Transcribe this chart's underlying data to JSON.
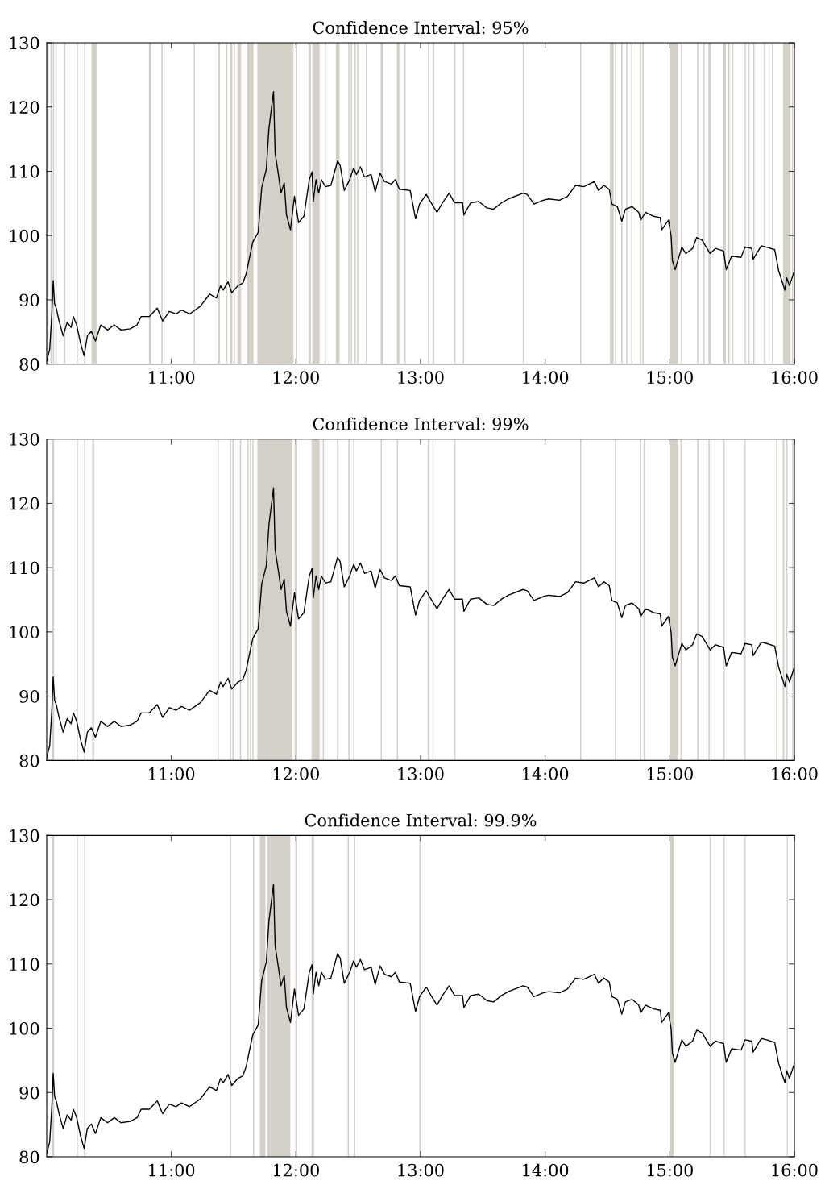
{
  "chart_data": [
    {
      "type": "line",
      "title": "Confidence Interval: 95%",
      "xlim": [
        10,
        16
      ],
      "ylim": [
        80,
        130
      ],
      "xticks": [
        {
          "value": 11,
          "label": "11:00"
        },
        {
          "value": 12,
          "label": "12:00"
        },
        {
          "value": 13,
          "label": "13:00"
        },
        {
          "value": 14,
          "label": "14:00"
        },
        {
          "value": 15,
          "label": "15:00"
        },
        {
          "value": 16,
          "label": "16:00"
        }
      ],
      "yticks": [
        80,
        90,
        100,
        110,
        120,
        130
      ],
      "series": [
        {
          "color": "#000000",
          "x": [
            10.0,
            10.024,
            10.041,
            10.052,
            10.063,
            10.078,
            10.099,
            10.132,
            10.164,
            10.196,
            10.214,
            10.24,
            10.272,
            10.3,
            10.326,
            10.358,
            10.391,
            10.434,
            10.488,
            10.542,
            10.596,
            10.671,
            10.725,
            10.758,
            10.823,
            10.887,
            10.93,
            10.984,
            11.038,
            11.082,
            11.146,
            11.233,
            11.308,
            11.362,
            11.395,
            11.416,
            11.455,
            11.485,
            11.535,
            11.574,
            11.6,
            11.632,
            11.654,
            11.697,
            11.725,
            11.762,
            11.783,
            11.82,
            11.833,
            11.859,
            11.88,
            11.906,
            11.924,
            11.956,
            11.988,
            12.021,
            12.064,
            12.107,
            12.129,
            12.139,
            12.161,
            12.183,
            12.204,
            12.237,
            12.28,
            12.334,
            12.355,
            12.388,
            12.431,
            12.463,
            12.485,
            12.517,
            12.55,
            12.604,
            12.636,
            12.675,
            12.711,
            12.765,
            12.798,
            12.83,
            12.917,
            12.96,
            12.992,
            13.046,
            13.078,
            13.132,
            13.176,
            13.229,
            13.273,
            13.337,
            13.348,
            13.402,
            13.467,
            13.532,
            13.586,
            13.65,
            13.704,
            13.823,
            13.856,
            13.91,
            13.985,
            14.028,
            14.115,
            14.179,
            14.244,
            14.309,
            14.395,
            14.428,
            14.471,
            14.514,
            14.536,
            14.579,
            14.615,
            14.644,
            14.698,
            14.751,
            14.767,
            14.805,
            14.87,
            14.924,
            14.935,
            14.989,
            15.011,
            15.021,
            15.043,
            15.097,
            15.129,
            15.183,
            15.216,
            15.259,
            15.324,
            15.367,
            15.432,
            15.453,
            15.496,
            15.572,
            15.604,
            15.658,
            15.669,
            15.734,
            15.777,
            15.842,
            15.874,
            15.924,
            15.939,
            15.96,
            16.0
          ],
          "values": [
            80.5,
            82.3,
            87.8,
            93.0,
            89.4,
            88.6,
            86.7,
            84.4,
            86.5,
            85.7,
            87.4,
            86.1,
            83.2,
            81.3,
            84.4,
            85.1,
            83.6,
            86.1,
            85.3,
            86.1,
            85.3,
            85.5,
            86.1,
            87.4,
            87.4,
            88.7,
            86.7,
            88.2,
            87.8,
            88.4,
            87.8,
            89.0,
            90.9,
            90.3,
            92.2,
            91.5,
            92.8,
            91.1,
            92.2,
            92.6,
            94.0,
            97.0,
            99.0,
            100.5,
            107.4,
            110.3,
            116.6,
            122.4,
            112.8,
            109.5,
            106.6,
            108.2,
            103.2,
            100.9,
            106.1,
            102.0,
            103.0,
            108.7,
            109.9,
            105.3,
            108.7,
            106.6,
            108.7,
            107.6,
            107.8,
            111.6,
            110.9,
            107.0,
            108.7,
            110.5,
            109.5,
            110.7,
            109.1,
            109.5,
            106.8,
            109.7,
            108.4,
            108.0,
            108.7,
            107.2,
            107.0,
            102.6,
            104.9,
            106.4,
            105.3,
            103.6,
            105.1,
            106.6,
            105.1,
            105.1,
            103.2,
            105.1,
            105.3,
            104.3,
            104.1,
            105.1,
            105.7,
            106.6,
            106.4,
            104.9,
            105.5,
            105.7,
            105.5,
            106.1,
            107.8,
            107.6,
            108.4,
            107.0,
            107.8,
            107.2,
            104.9,
            104.5,
            102.2,
            104.1,
            104.5,
            103.6,
            102.4,
            103.6,
            103.0,
            102.8,
            100.9,
            102.4,
            99.9,
            96.1,
            94.7,
            98.2,
            97.2,
            98.0,
            99.7,
            99.3,
            97.2,
            98.0,
            97.6,
            94.7,
            96.8,
            96.6,
            98.2,
            98.0,
            96.3,
            98.4,
            98.2,
            97.8,
            94.5,
            91.5,
            93.4,
            92.2,
            94.5
          ]
        }
      ],
      "bands": [
        {
          "axis": "x",
          "from": 10.0,
          "to": 10.015,
          "color": "#d4d0c8"
        },
        {
          "axis": "x",
          "from": 10.03,
          "to": 10.04,
          "color": "#d4d0c8"
        },
        {
          "axis": "x",
          "from": 10.05,
          "to": 10.06,
          "color": "#d4d0c8"
        },
        {
          "axis": "x",
          "from": 10.07,
          "to": 10.08,
          "color": "#d4d0c8"
        },
        {
          "axis": "x",
          "from": 10.14,
          "to": 10.15,
          "color": "#d4d0c8"
        },
        {
          "axis": "x",
          "from": 10.24,
          "to": 10.25,
          "color": "#d4d0c8"
        },
        {
          "axis": "x",
          "from": 10.3,
          "to": 10.31,
          "color": "#d4d0c8"
        },
        {
          "axis": "x",
          "from": 10.36,
          "to": 10.4,
          "color": "#d4d0c8"
        },
        {
          "axis": "x",
          "from": 10.82,
          "to": 10.84,
          "color": "#d4d0c8"
        },
        {
          "axis": "x",
          "from": 10.92,
          "to": 10.93,
          "color": "#d4d0c8"
        },
        {
          "axis": "x",
          "from": 11.18,
          "to": 11.19,
          "color": "#d4d0c8"
        },
        {
          "axis": "x",
          "from": 11.37,
          "to": 11.39,
          "color": "#d4d0c8"
        },
        {
          "axis": "x",
          "from": 11.44,
          "to": 11.45,
          "color": "#d4d0c8"
        },
        {
          "axis": "x",
          "from": 11.47,
          "to": 11.49,
          "color": "#d4d0c8"
        },
        {
          "axis": "x",
          "from": 11.5,
          "to": 11.51,
          "color": "#d4d0c8"
        },
        {
          "axis": "x",
          "from": 11.53,
          "to": 11.56,
          "color": "#d4d0c8"
        },
        {
          "axis": "x",
          "from": 11.61,
          "to": 11.66,
          "color": "#d4d0c8"
        },
        {
          "axis": "x",
          "from": 11.69,
          "to": 11.98,
          "color": "#d4d0c8"
        },
        {
          "axis": "x",
          "from": 12.0,
          "to": 12.01,
          "color": "#d4d0c8"
        },
        {
          "axis": "x",
          "from": 12.1,
          "to": 12.12,
          "color": "#d4d0c8"
        },
        {
          "axis": "x",
          "from": 12.13,
          "to": 12.19,
          "color": "#d4d0c8"
        },
        {
          "axis": "x",
          "from": 12.23,
          "to": 12.24,
          "color": "#d4d0c8"
        },
        {
          "axis": "x",
          "from": 12.32,
          "to": 12.35,
          "color": "#d4d0c8"
        },
        {
          "axis": "x",
          "from": 12.42,
          "to": 12.43,
          "color": "#d4d0c8"
        },
        {
          "axis": "x",
          "from": 12.44,
          "to": 12.45,
          "color": "#d4d0c8"
        },
        {
          "axis": "x",
          "from": 12.47,
          "to": 12.48,
          "color": "#d4d0c8"
        },
        {
          "axis": "x",
          "from": 12.49,
          "to": 12.5,
          "color": "#d4d0c8"
        },
        {
          "axis": "x",
          "from": 12.56,
          "to": 12.57,
          "color": "#d4d0c8"
        },
        {
          "axis": "x",
          "from": 12.68,
          "to": 12.7,
          "color": "#d4d0c8"
        },
        {
          "axis": "x",
          "from": 12.81,
          "to": 12.83,
          "color": "#d4d0c8"
        },
        {
          "axis": "x",
          "from": 12.87,
          "to": 12.88,
          "color": "#d4d0c8"
        },
        {
          "axis": "x",
          "from": 13.06,
          "to": 13.07,
          "color": "#d4d0c8"
        },
        {
          "axis": "x",
          "from": 13.096,
          "to": 13.11,
          "color": "#d4d0c8"
        },
        {
          "axis": "x",
          "from": 13.27,
          "to": 13.28,
          "color": "#d4d0c8"
        },
        {
          "axis": "x",
          "from": 13.34,
          "to": 13.35,
          "color": "#d4d0c8"
        },
        {
          "axis": "x",
          "from": 13.82,
          "to": 13.83,
          "color": "#d4d0c8"
        },
        {
          "axis": "x",
          "from": 14.28,
          "to": 14.29,
          "color": "#d4d0c8"
        },
        {
          "axis": "x",
          "from": 14.52,
          "to": 14.55,
          "color": "#d4d0c8"
        },
        {
          "axis": "x",
          "from": 14.56,
          "to": 14.57,
          "color": "#d4d0c8"
        },
        {
          "axis": "x",
          "from": 14.61,
          "to": 14.62,
          "color": "#d4d0c8"
        },
        {
          "axis": "x",
          "from": 14.65,
          "to": 14.66,
          "color": "#d4d0c8"
        },
        {
          "axis": "x",
          "from": 14.69,
          "to": 14.7,
          "color": "#d4d0c8"
        },
        {
          "axis": "x",
          "from": 14.76,
          "to": 14.77,
          "color": "#d4d0c8"
        },
        {
          "axis": "x",
          "from": 14.78,
          "to": 14.79,
          "color": "#d4d0c8"
        },
        {
          "axis": "x",
          "from": 15.0,
          "to": 15.065,
          "color": "#d4d0c8"
        },
        {
          "axis": "x",
          "from": 15.09,
          "to": 15.095,
          "color": "#d4d0c8"
        },
        {
          "axis": "x",
          "from": 15.22,
          "to": 15.23,
          "color": "#d4d0c8"
        },
        {
          "axis": "x",
          "from": 15.27,
          "to": 15.28,
          "color": "#d4d0c8"
        },
        {
          "axis": "x",
          "from": 15.31,
          "to": 15.33,
          "color": "#d4d0c8"
        },
        {
          "axis": "x",
          "from": 15.43,
          "to": 15.45,
          "color": "#d4d0c8"
        },
        {
          "axis": "x",
          "from": 15.47,
          "to": 15.48,
          "color": "#d4d0c8"
        },
        {
          "axis": "x",
          "from": 15.5,
          "to": 15.51,
          "color": "#d4d0c8"
        },
        {
          "axis": "x",
          "from": 15.6,
          "to": 15.61,
          "color": "#d4d0c8"
        },
        {
          "axis": "x",
          "from": 15.63,
          "to": 15.64,
          "color": "#d4d0c8"
        },
        {
          "axis": "x",
          "from": 15.67,
          "to": 15.68,
          "color": "#d4d0c8"
        },
        {
          "axis": "x",
          "from": 15.755,
          "to": 15.765,
          "color": "#d4d0c8"
        },
        {
          "axis": "x",
          "from": 15.82,
          "to": 15.83,
          "color": "#d4d0c8"
        },
        {
          "axis": "x",
          "from": 15.91,
          "to": 15.97,
          "color": "#d4d0c8"
        },
        {
          "axis": "x",
          "from": 15.98,
          "to": 15.99,
          "color": "#d4d0c8"
        }
      ]
    },
    {
      "type": "line",
      "title": "Confidence Interval: 99%",
      "xlim": [
        10,
        16
      ],
      "ylim": [
        80,
        130
      ],
      "xticks": [
        {
          "value": 11,
          "label": "11:00"
        },
        {
          "value": 12,
          "label": "12:00"
        },
        {
          "value": 13,
          "label": "13:00"
        },
        {
          "value": 14,
          "label": "14:00"
        },
        {
          "value": 15,
          "label": "15:00"
        },
        {
          "value": 16,
          "label": "16:00"
        }
      ],
      "yticks": [
        80,
        90,
        100,
        110,
        120,
        130
      ],
      "series": [
        {
          "color": "#000000",
          "x": [
            10.0,
            10.024,
            10.041,
            10.052,
            10.063,
            10.078,
            10.099,
            10.132,
            10.164,
            10.196,
            10.214,
            10.24,
            10.272,
            10.3,
            10.326,
            10.358,
            10.391,
            10.434,
            10.488,
            10.542,
            10.596,
            10.671,
            10.725,
            10.758,
            10.823,
            10.887,
            10.93,
            10.984,
            11.038,
            11.082,
            11.146,
            11.233,
            11.308,
            11.362,
            11.395,
            11.416,
            11.455,
            11.485,
            11.535,
            11.574,
            11.6,
            11.632,
            11.654,
            11.697,
            11.725,
            11.762,
            11.783,
            11.82,
            11.833,
            11.859,
            11.88,
            11.906,
            11.924,
            11.956,
            11.988,
            12.021,
            12.064,
            12.107,
            12.129,
            12.139,
            12.161,
            12.183,
            12.204,
            12.237,
            12.28,
            12.334,
            12.355,
            12.388,
            12.431,
            12.463,
            12.485,
            12.517,
            12.55,
            12.604,
            12.636,
            12.675,
            12.711,
            12.765,
            12.798,
            12.83,
            12.917,
            12.96,
            12.992,
            13.046,
            13.078,
            13.132,
            13.176,
            13.229,
            13.273,
            13.337,
            13.348,
            13.402,
            13.467,
            13.532,
            13.586,
            13.65,
            13.704,
            13.823,
            13.856,
            13.91,
            13.985,
            14.028,
            14.115,
            14.179,
            14.244,
            14.309,
            14.395,
            14.428,
            14.471,
            14.514,
            14.536,
            14.579,
            14.615,
            14.644,
            14.698,
            14.751,
            14.767,
            14.805,
            14.87,
            14.924,
            14.935,
            14.989,
            15.011,
            15.021,
            15.043,
            15.097,
            15.129,
            15.183,
            15.216,
            15.259,
            15.324,
            15.367,
            15.432,
            15.453,
            15.496,
            15.572,
            15.604,
            15.658,
            15.669,
            15.734,
            15.777,
            15.842,
            15.874,
            15.924,
            15.939,
            15.96,
            16.0
          ],
          "values": [
            80.5,
            82.3,
            87.8,
            93.0,
            89.4,
            88.6,
            86.7,
            84.4,
            86.5,
            85.7,
            87.4,
            86.1,
            83.2,
            81.3,
            84.4,
            85.1,
            83.6,
            86.1,
            85.3,
            86.1,
            85.3,
            85.5,
            86.1,
            87.4,
            87.4,
            88.7,
            86.7,
            88.2,
            87.8,
            88.4,
            87.8,
            89.0,
            90.9,
            90.3,
            92.2,
            91.5,
            92.8,
            91.1,
            92.2,
            92.6,
            94.0,
            97.0,
            99.0,
            100.5,
            107.4,
            110.3,
            116.6,
            122.4,
            112.8,
            109.5,
            106.6,
            108.2,
            103.2,
            100.9,
            106.1,
            102.0,
            103.0,
            108.7,
            109.9,
            105.3,
            108.7,
            106.6,
            108.7,
            107.6,
            107.8,
            111.6,
            110.9,
            107.0,
            108.7,
            110.5,
            109.5,
            110.7,
            109.1,
            109.5,
            106.8,
            109.7,
            108.4,
            108.0,
            108.7,
            107.2,
            107.0,
            102.6,
            104.9,
            106.4,
            105.3,
            103.6,
            105.1,
            106.6,
            105.1,
            105.1,
            103.2,
            105.1,
            105.3,
            104.3,
            104.1,
            105.1,
            105.7,
            106.6,
            106.4,
            104.9,
            105.5,
            105.7,
            105.5,
            106.1,
            107.8,
            107.6,
            108.4,
            107.0,
            107.8,
            107.2,
            104.9,
            104.5,
            102.2,
            104.1,
            104.5,
            103.6,
            102.4,
            103.6,
            103.0,
            102.8,
            100.9,
            102.4,
            99.9,
            96.1,
            94.7,
            98.2,
            97.2,
            98.0,
            99.7,
            99.3,
            97.2,
            98.0,
            97.6,
            94.7,
            96.8,
            96.6,
            98.2,
            98.0,
            96.3,
            98.4,
            98.2,
            97.8,
            94.5,
            91.5,
            93.4,
            92.2,
            94.5
          ]
        }
      ],
      "bands": [
        {
          "axis": "x",
          "from": 10.045,
          "to": 10.06,
          "color": "#d4d0c8"
        },
        {
          "axis": "x",
          "from": 10.24,
          "to": 10.25,
          "color": "#d4d0c8"
        },
        {
          "axis": "x",
          "from": 10.3,
          "to": 10.31,
          "color": "#d4d0c8"
        },
        {
          "axis": "x",
          "from": 10.365,
          "to": 10.38,
          "color": "#d4d0c8"
        },
        {
          "axis": "x",
          "from": 11.37,
          "to": 11.38,
          "color": "#d4d0c8"
        },
        {
          "axis": "x",
          "from": 11.47,
          "to": 11.48,
          "color": "#d4d0c8"
        },
        {
          "axis": "x",
          "from": 11.49,
          "to": 11.5,
          "color": "#d4d0c8"
        },
        {
          "axis": "x",
          "from": 11.55,
          "to": 11.56,
          "color": "#d4d0c8"
        },
        {
          "axis": "x",
          "from": 11.61,
          "to": 11.62,
          "color": "#d4d0c8"
        },
        {
          "axis": "x",
          "from": 11.63,
          "to": 11.64,
          "color": "#d4d0c8"
        },
        {
          "axis": "x",
          "from": 11.65,
          "to": 11.66,
          "color": "#d4d0c8"
        },
        {
          "axis": "x",
          "from": 11.69,
          "to": 11.97,
          "color": "#d4d0c8"
        },
        {
          "axis": "x",
          "from": 11.99,
          "to": 12.01,
          "color": "#d4d0c8"
        },
        {
          "axis": "x",
          "from": 12.125,
          "to": 12.19,
          "color": "#d4d0c8"
        },
        {
          "axis": "x",
          "from": 12.215,
          "to": 12.225,
          "color": "#d4d0c8"
        },
        {
          "axis": "x",
          "from": 12.33,
          "to": 12.34,
          "color": "#d4d0c8"
        },
        {
          "axis": "x",
          "from": 12.42,
          "to": 12.43,
          "color": "#d4d0c8"
        },
        {
          "axis": "x",
          "from": 12.46,
          "to": 12.47,
          "color": "#d4d0c8"
        },
        {
          "axis": "x",
          "from": 12.68,
          "to": 12.69,
          "color": "#d4d0c8"
        },
        {
          "axis": "x",
          "from": 12.81,
          "to": 12.82,
          "color": "#d4d0c8"
        },
        {
          "axis": "x",
          "from": 13.057,
          "to": 13.065,
          "color": "#d4d0c8"
        },
        {
          "axis": "x",
          "from": 13.096,
          "to": 13.104,
          "color": "#d4d0c8"
        },
        {
          "axis": "x",
          "from": 13.27,
          "to": 13.28,
          "color": "#d4d0c8"
        },
        {
          "axis": "x",
          "from": 14.28,
          "to": 14.29,
          "color": "#d4d0c8"
        },
        {
          "axis": "x",
          "from": 14.56,
          "to": 14.57,
          "color": "#d4d0c8"
        },
        {
          "axis": "x",
          "from": 14.76,
          "to": 14.77,
          "color": "#d4d0c8"
        },
        {
          "axis": "x",
          "from": 14.79,
          "to": 14.8,
          "color": "#d4d0c8"
        },
        {
          "axis": "x",
          "from": 15.0,
          "to": 15.065,
          "color": "#d4d0c8"
        },
        {
          "axis": "x",
          "from": 15.086,
          "to": 15.097,
          "color": "#d4d0c8"
        },
        {
          "axis": "x",
          "from": 15.22,
          "to": 15.233,
          "color": "#d4d0c8"
        },
        {
          "axis": "x",
          "from": 15.31,
          "to": 15.32,
          "color": "#d4d0c8"
        },
        {
          "axis": "x",
          "from": 15.432,
          "to": 15.44,
          "color": "#d4d0c8"
        },
        {
          "axis": "x",
          "from": 15.6,
          "to": 15.609,
          "color": "#d4d0c8"
        },
        {
          "axis": "x",
          "from": 15.853,
          "to": 15.862,
          "color": "#d4d0c8"
        },
        {
          "axis": "x",
          "from": 15.906,
          "to": 15.92,
          "color": "#d4d0c8"
        },
        {
          "axis": "x",
          "from": 15.932,
          "to": 15.945,
          "color": "#d4d0c8"
        },
        {
          "axis": "x",
          "from": 15.982,
          "to": 15.993,
          "color": "#d4d0c8"
        }
      ]
    },
    {
      "type": "line",
      "title": "Confidence Interval: 99.9%",
      "xlim": [
        10,
        16
      ],
      "ylim": [
        80,
        130
      ],
      "xticks": [
        {
          "value": 11,
          "label": "11:00"
        },
        {
          "value": 12,
          "label": "12:00"
        },
        {
          "value": 13,
          "label": "13:00"
        },
        {
          "value": 14,
          "label": "14:00"
        },
        {
          "value": 15,
          "label": "15:00"
        },
        {
          "value": 16,
          "label": "16:00"
        }
      ],
      "yticks": [
        80,
        90,
        100,
        110,
        120,
        130
      ],
      "series": [
        {
          "color": "#000000",
          "x": [
            10.0,
            10.024,
            10.041,
            10.052,
            10.063,
            10.078,
            10.099,
            10.132,
            10.164,
            10.196,
            10.214,
            10.24,
            10.272,
            10.3,
            10.326,
            10.358,
            10.391,
            10.434,
            10.488,
            10.542,
            10.596,
            10.671,
            10.725,
            10.758,
            10.823,
            10.887,
            10.93,
            10.984,
            11.038,
            11.082,
            11.146,
            11.233,
            11.308,
            11.362,
            11.395,
            11.416,
            11.455,
            11.485,
            11.535,
            11.574,
            11.6,
            11.632,
            11.654,
            11.697,
            11.725,
            11.762,
            11.783,
            11.82,
            11.833,
            11.859,
            11.88,
            11.906,
            11.924,
            11.956,
            11.988,
            12.021,
            12.064,
            12.107,
            12.129,
            12.139,
            12.161,
            12.183,
            12.204,
            12.237,
            12.28,
            12.334,
            12.355,
            12.388,
            12.431,
            12.463,
            12.485,
            12.517,
            12.55,
            12.604,
            12.636,
            12.675,
            12.711,
            12.765,
            12.798,
            12.83,
            12.917,
            12.96,
            12.992,
            13.046,
            13.078,
            13.132,
            13.176,
            13.229,
            13.273,
            13.337,
            13.348,
            13.402,
            13.467,
            13.532,
            13.586,
            13.65,
            13.704,
            13.823,
            13.856,
            13.91,
            13.985,
            14.028,
            14.115,
            14.179,
            14.244,
            14.309,
            14.395,
            14.428,
            14.471,
            14.514,
            14.536,
            14.579,
            14.615,
            14.644,
            14.698,
            14.751,
            14.767,
            14.805,
            14.87,
            14.924,
            14.935,
            14.989,
            15.011,
            15.021,
            15.043,
            15.097,
            15.129,
            15.183,
            15.216,
            15.259,
            15.324,
            15.367,
            15.432,
            15.453,
            15.496,
            15.572,
            15.604,
            15.658,
            15.669,
            15.734,
            15.777,
            15.842,
            15.874,
            15.924,
            15.939,
            15.96,
            16.0
          ],
          "values": [
            80.5,
            82.3,
            87.8,
            93.0,
            89.4,
            88.6,
            86.7,
            84.4,
            86.5,
            85.7,
            87.4,
            86.1,
            83.2,
            81.3,
            84.4,
            85.1,
            83.6,
            86.1,
            85.3,
            86.1,
            85.3,
            85.5,
            86.1,
            87.4,
            87.4,
            88.7,
            86.7,
            88.2,
            87.8,
            88.4,
            87.8,
            89.0,
            90.9,
            90.3,
            92.2,
            91.5,
            92.8,
            91.1,
            92.2,
            92.6,
            94.0,
            97.0,
            99.0,
            100.5,
            107.4,
            110.3,
            116.6,
            122.4,
            112.8,
            109.5,
            106.6,
            108.2,
            103.2,
            100.9,
            106.1,
            102.0,
            103.0,
            108.7,
            109.9,
            105.3,
            108.7,
            106.6,
            108.7,
            107.6,
            107.8,
            111.6,
            110.9,
            107.0,
            108.7,
            110.5,
            109.5,
            110.7,
            109.1,
            109.5,
            106.8,
            109.7,
            108.4,
            108.0,
            108.7,
            107.2,
            107.0,
            102.6,
            104.9,
            106.4,
            105.3,
            103.6,
            105.1,
            106.6,
            105.1,
            105.1,
            103.2,
            105.1,
            105.3,
            104.3,
            104.1,
            105.1,
            105.7,
            106.6,
            106.4,
            104.9,
            105.5,
            105.7,
            105.5,
            106.1,
            107.8,
            107.6,
            108.4,
            107.0,
            107.8,
            107.2,
            104.9,
            104.5,
            102.2,
            104.1,
            104.5,
            103.6,
            102.4,
            103.6,
            103.0,
            102.8,
            100.9,
            102.4,
            99.9,
            96.1,
            94.7,
            98.2,
            97.2,
            98.0,
            99.7,
            99.3,
            97.2,
            98.0,
            97.6,
            94.7,
            96.8,
            96.6,
            98.2,
            98.0,
            96.3,
            98.4,
            98.2,
            97.8,
            94.5,
            91.5,
            93.4,
            92.2,
            94.5
          ]
        }
      ],
      "bands": [
        {
          "axis": "x",
          "from": 10.045,
          "to": 10.06,
          "color": "#d4d0c8"
        },
        {
          "axis": "x",
          "from": 10.24,
          "to": 10.25,
          "color": "#d4d0c8"
        },
        {
          "axis": "x",
          "from": 10.3,
          "to": 10.31,
          "color": "#d4d0c8"
        },
        {
          "axis": "x",
          "from": 11.47,
          "to": 11.48,
          "color": "#d4d0c8"
        },
        {
          "axis": "x",
          "from": 11.655,
          "to": 11.665,
          "color": "#d4d0c8"
        },
        {
          "axis": "x",
          "from": 11.71,
          "to": 11.755,
          "color": "#d4d0c8"
        },
        {
          "axis": "x",
          "from": 11.77,
          "to": 11.955,
          "color": "#d4d0c8"
        },
        {
          "axis": "x",
          "from": 11.995,
          "to": 12.01,
          "color": "#d4d0c8"
        },
        {
          "axis": "x",
          "from": 12.125,
          "to": 12.145,
          "color": "#d4d0c8"
        },
        {
          "axis": "x",
          "from": 12.415,
          "to": 12.426,
          "color": "#d4d0c8"
        },
        {
          "axis": "x",
          "from": 12.463,
          "to": 12.476,
          "color": "#d4d0c8"
        },
        {
          "axis": "x",
          "from": 12.99,
          "to": 13.0,
          "color": "#d4d0c8"
        },
        {
          "axis": "x",
          "from": 15.0,
          "to": 15.032,
          "color": "#d4d0c8"
        },
        {
          "axis": "x",
          "from": 15.32,
          "to": 15.328,
          "color": "#d4d0c8"
        },
        {
          "axis": "x",
          "from": 15.432,
          "to": 15.44,
          "color": "#d4d0c8"
        },
        {
          "axis": "x",
          "from": 15.6,
          "to": 15.609,
          "color": "#d4d0c8"
        },
        {
          "axis": "x",
          "from": 15.939,
          "to": 15.947,
          "color": "#d4d0c8"
        }
      ]
    }
  ]
}
